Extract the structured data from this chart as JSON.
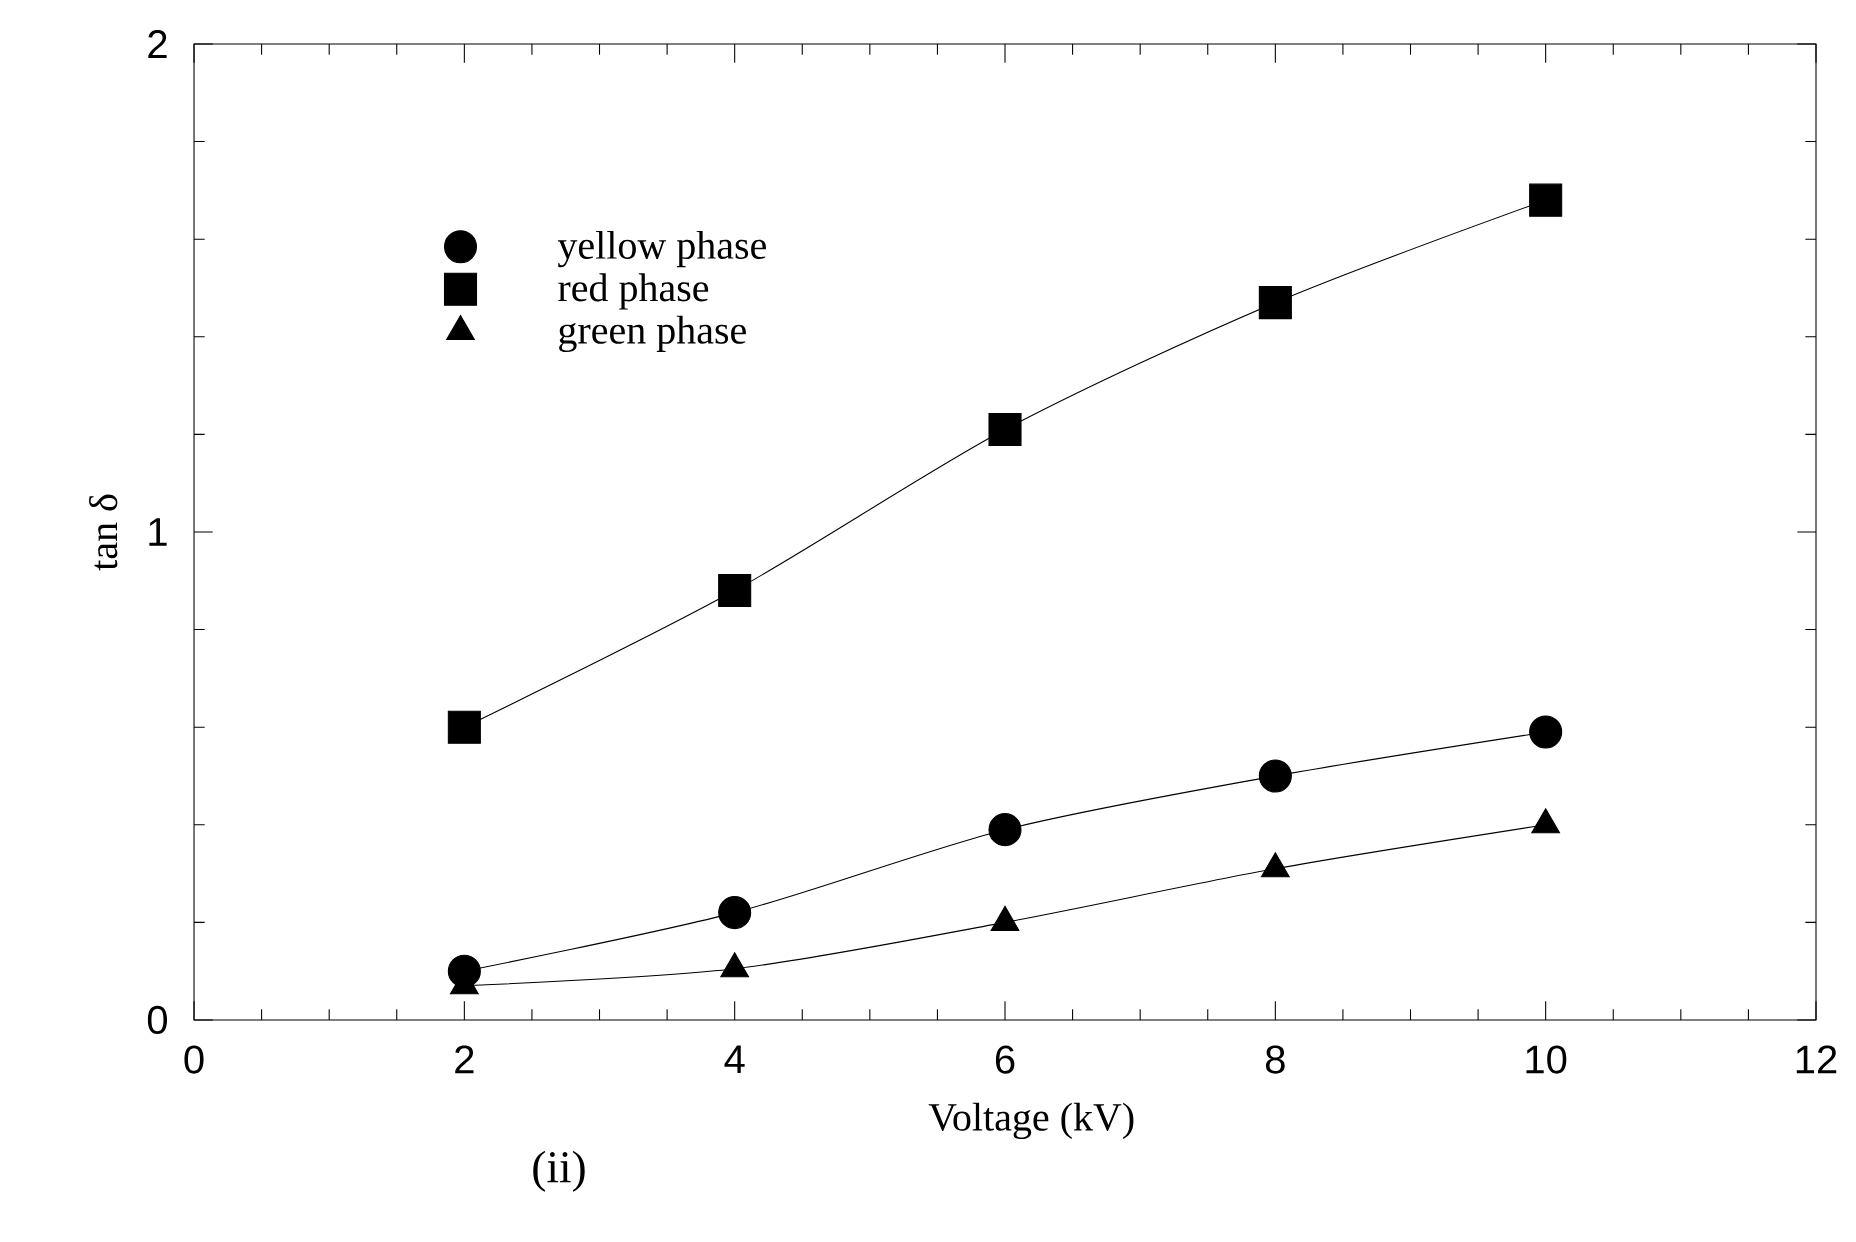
{
  "chart_data": {
    "type": "line",
    "xlabel": "Voltage (kV)",
    "ylabel": "tan δ",
    "x": [
      2,
      4,
      6,
      8,
      10
    ],
    "series": [
      {
        "name": "yellow phase",
        "color": "#000000",
        "marker": "circle",
        "values": [
          0.1,
          0.22,
          0.39,
          0.5,
          0.59
        ]
      },
      {
        "name": "red phase",
        "color": "#000000",
        "marker": "square",
        "values": [
          0.6,
          0.88,
          1.21,
          1.47,
          1.68
        ]
      },
      {
        "name": "green phase",
        "color": "#000000",
        "marker": "triangle",
        "values": [
          0.07,
          0.105,
          0.2,
          0.31,
          0.4
        ]
      }
    ],
    "xlim": [
      0,
      12
    ],
    "ylim": [
      0,
      2
    ],
    "xticks": [
      0,
      2,
      4,
      6,
      8,
      10,
      12
    ],
    "yticks": [
      0,
      1,
      2
    ],
    "line_style": "solid",
    "grid": false,
    "legend": "top left",
    "annotations": [
      "(ii)"
    ]
  }
}
